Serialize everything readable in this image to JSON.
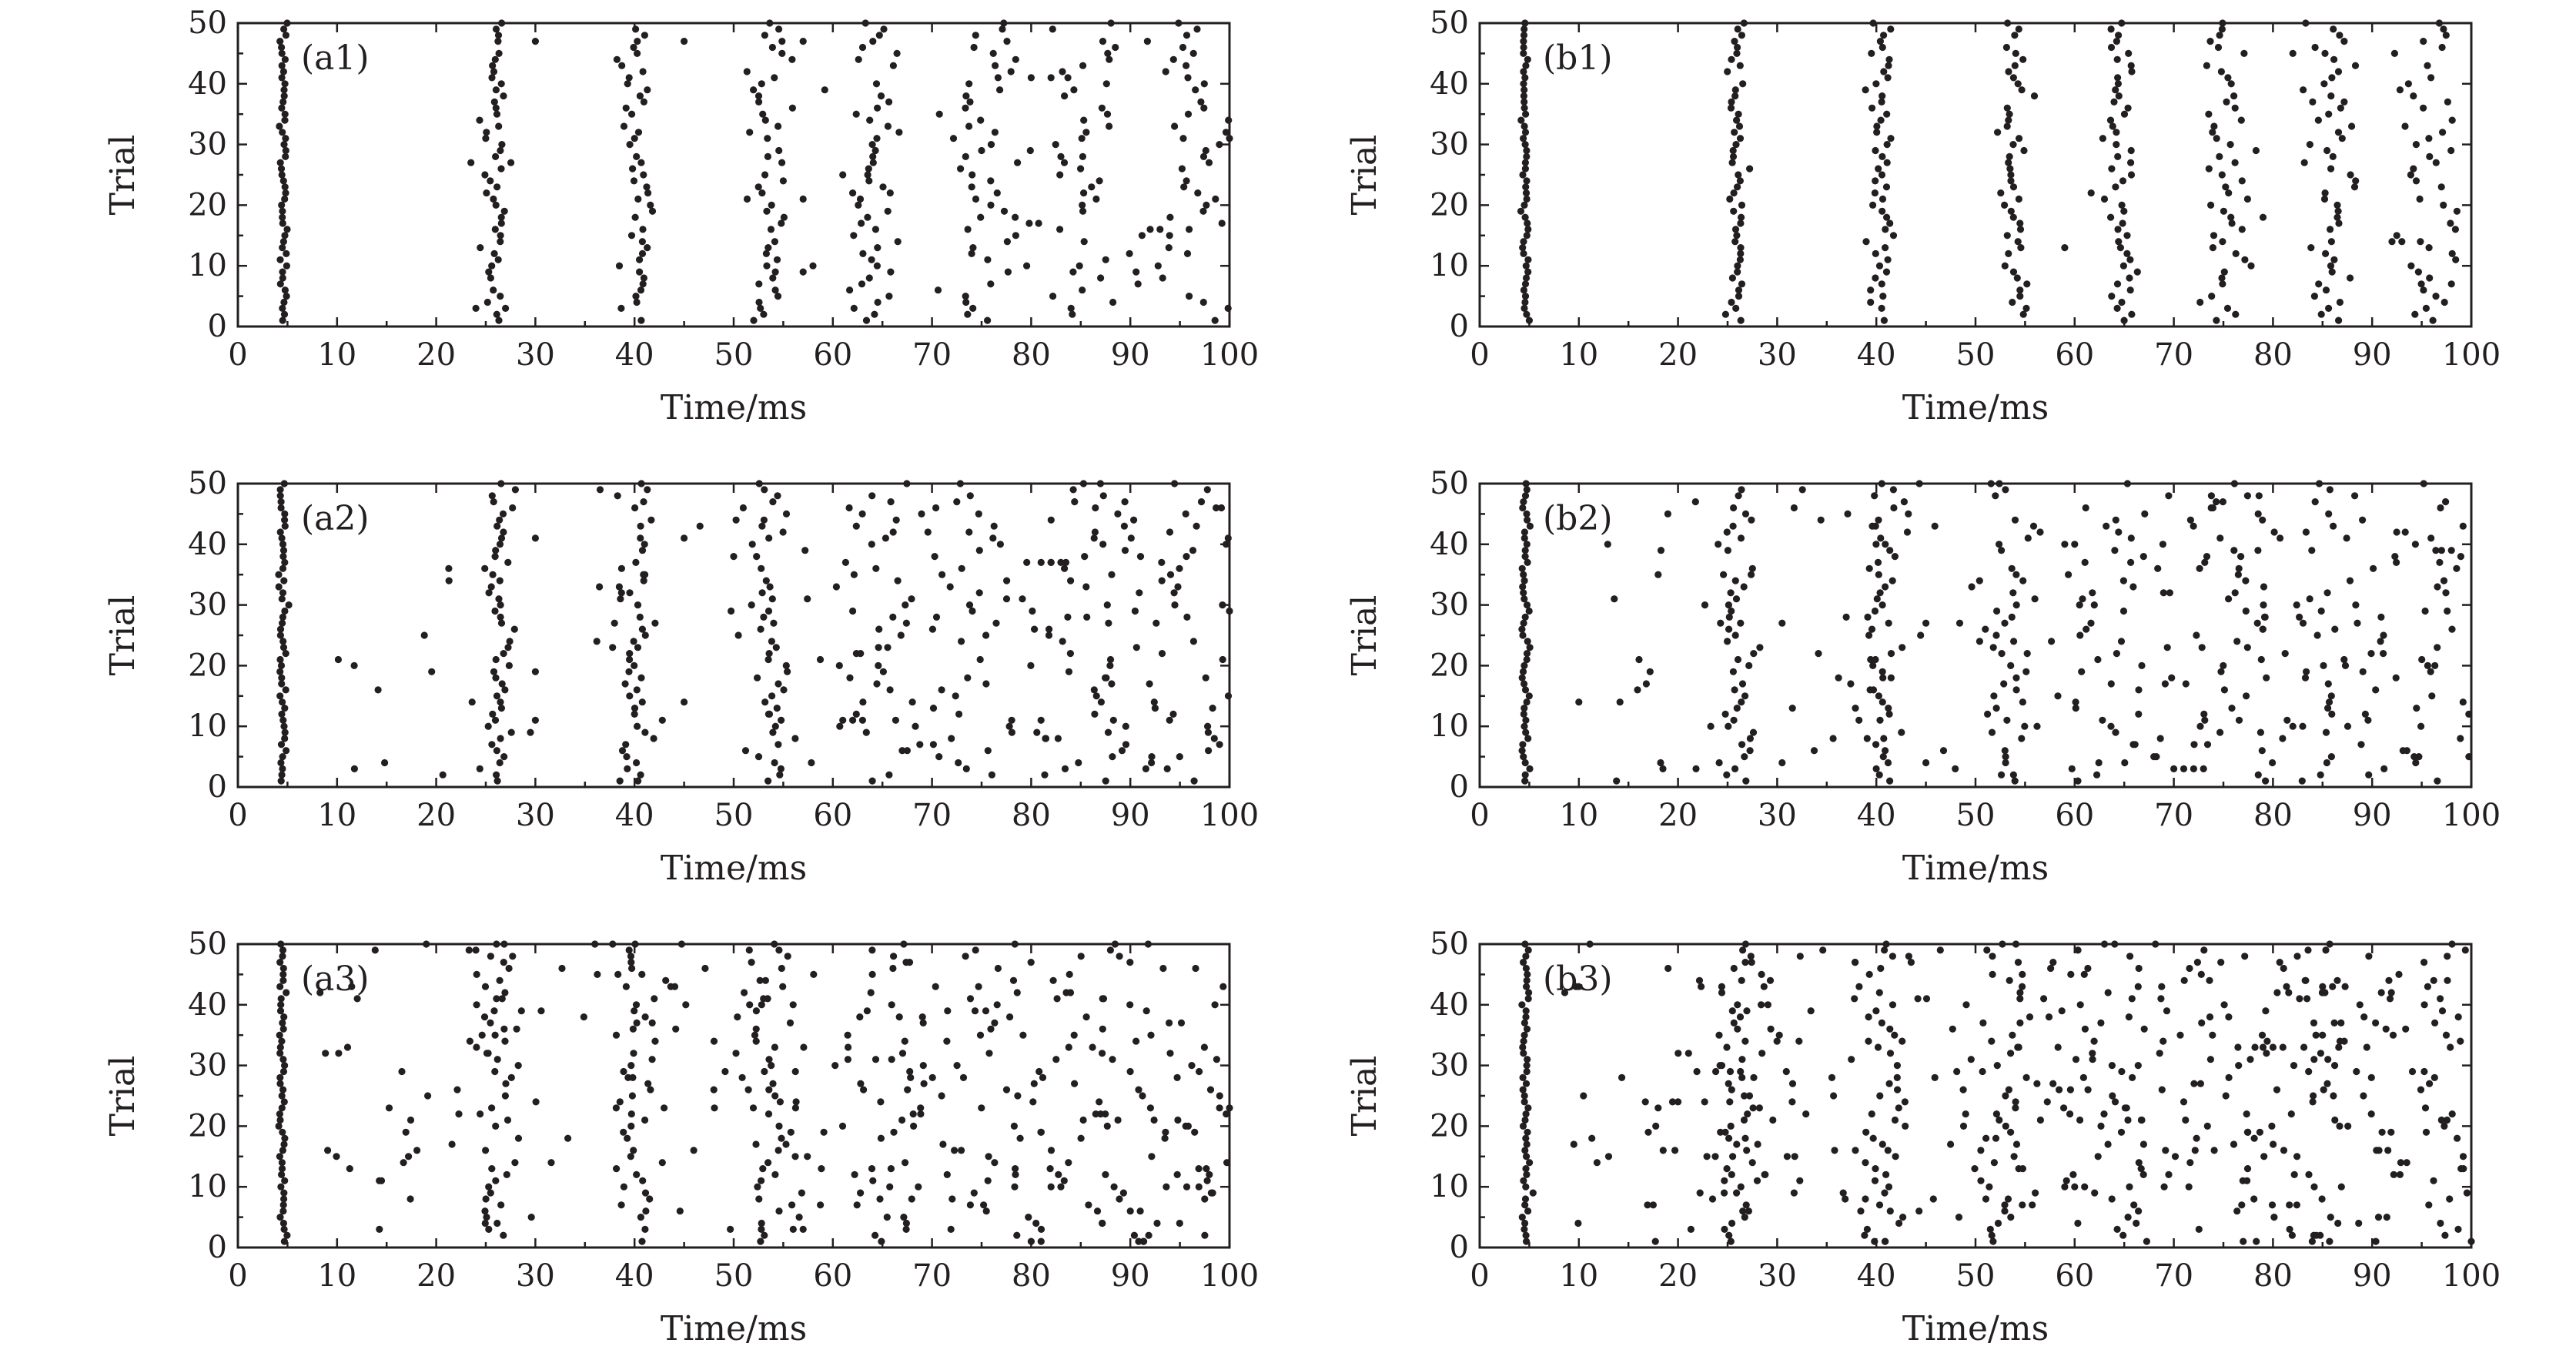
{
  "figure": {
    "colors": {
      "ink": "#231f20",
      "background": "#ffffff"
    }
  },
  "chart_data": [
    {
      "type": "scatter",
      "label": "(a1)",
      "xlabel": "Time/ms",
      "ylabel": "Trial",
      "xlim": [
        0,
        100
      ],
      "ylim": [
        0,
        50
      ],
      "xticks": [
        0,
        10,
        20,
        30,
        40,
        50,
        60,
        70,
        80,
        90,
        100
      ],
      "yticks": [
        0,
        10,
        20,
        30,
        40,
        50
      ],
      "noise_level": 0.6,
      "seed": 11,
      "volleys": [
        {
          "center": 4.6,
          "jitter": 0.18
        },
        {
          "center": 26.0,
          "jitter": 0.6
        },
        {
          "center": 40.4,
          "jitter": 0.8
        },
        {
          "center": 53.5,
          "jitter": 1.1
        },
        {
          "center": 64.3,
          "jitter": 1.6
        },
        {
          "center": 75.4,
          "jitter": 2.0
        },
        {
          "center": 86.1,
          "jitter": 2.3
        },
        {
          "center": 96.5,
          "jitter": 2.4
        }
      ],
      "extra_spikes": [
        [
          23.5,
          27
        ],
        [
          24,
          3
        ],
        [
          30,
          47
        ],
        [
          45,
          47
        ],
        [
          57,
          47
        ],
        [
          57,
          21
        ],
        [
          57,
          9
        ],
        [
          58,
          10
        ],
        [
          61,
          25
        ],
        [
          62,
          22
        ],
        [
          80,
          41
        ],
        [
          82,
          41
        ],
        [
          83,
          28
        ],
        [
          92,
          16
        ],
        [
          93,
          16
        ],
        [
          100,
          31
        ]
      ]
    },
    {
      "type": "scatter",
      "label": "(a2)",
      "xlabel": "Time/ms",
      "ylabel": "Trial",
      "xlim": [
        0,
        100
      ],
      "ylim": [
        0,
        50
      ],
      "xticks": [
        0,
        10,
        20,
        30,
        40,
        50,
        60,
        70,
        80,
        90,
        100
      ],
      "yticks": [
        0,
        10,
        20,
        30,
        40,
        50
      ],
      "noise_level": 1.6,
      "seed": 23,
      "volleys": [
        {
          "center": 4.5,
          "jitter": 0.18
        },
        {
          "center": 26.2,
          "jitter": 0.8
        },
        {
          "center": 40.3,
          "jitter": 0.9
        },
        {
          "center": 53.5,
          "jitter": 1.2
        },
        {
          "center": 64.0,
          "jitter": 2.6
        },
        {
          "center": 75.0,
          "jitter": 3.0
        },
        {
          "center": 86.0,
          "jitter": 3.0
        },
        {
          "center": 96.5,
          "jitter": 3.0
        }
      ],
      "extra_spikes": [
        [
          30,
          41
        ],
        [
          30,
          19
        ],
        [
          29.5,
          9
        ],
        [
          30,
          11
        ],
        [
          45,
          41
        ],
        [
          45,
          14
        ],
        [
          50,
          38
        ],
        [
          61,
          11
        ],
        [
          62,
          11
        ],
        [
          63,
          11
        ],
        [
          81,
          37
        ],
        [
          82,
          37
        ],
        [
          83,
          37
        ],
        [
          100,
          29
        ],
        [
          99,
          7
        ]
      ]
    },
    {
      "type": "scatter",
      "label": "(a3)",
      "xlabel": "Time/ms",
      "ylabel": "Trial",
      "xlim": [
        0,
        100
      ],
      "ylim": [
        0,
        50
      ],
      "xticks": [
        0,
        10,
        20,
        30,
        40,
        50,
        60,
        70,
        80,
        90,
        100
      ],
      "yticks": [
        0,
        10,
        20,
        30,
        40,
        50
      ],
      "noise_level": 3.2,
      "seed": 37,
      "volleys": [
        {
          "center": 4.5,
          "jitter": 0.18
        },
        {
          "center": 26.5,
          "jitter": 1.4
        },
        {
          "center": 40.3,
          "jitter": 1.3
        },
        {
          "center": 53.5,
          "jitter": 1.6
        },
        {
          "center": 64.5,
          "jitter": 3.5
        },
        {
          "center": 76.0,
          "jitter": 4.0
        },
        {
          "center": 87.0,
          "jitter": 4.0
        },
        {
          "center": 97.0,
          "jitter": 4.0
        }
      ],
      "extra_spikes": [
        [
          19,
          50
        ],
        [
          24,
          49
        ],
        [
          36,
          50
        ],
        [
          56,
          3
        ],
        [
          57,
          3
        ],
        [
          80,
          1
        ],
        [
          81,
          1
        ],
        [
          82,
          10
        ],
        [
          83,
          10
        ],
        [
          90,
          6
        ],
        [
          91,
          6
        ],
        [
          100,
          23
        ],
        [
          99,
          23
        ]
      ]
    },
    {
      "type": "scatter",
      "label": "(b1)",
      "xlabel": "Time/ms",
      "ylabel": "Trial",
      "xlim": [
        0,
        100
      ],
      "ylim": [
        0,
        50
      ],
      "xticks": [
        0,
        10,
        20,
        30,
        40,
        50,
        60,
        70,
        80,
        90,
        100
      ],
      "yticks": [
        0,
        10,
        20,
        30,
        40,
        50
      ],
      "noise_level": 0.4,
      "seed": 53,
      "volleys": [
        {
          "center": 4.6,
          "jitter": 0.18
        },
        {
          "center": 26.0,
          "jitter": 0.5
        },
        {
          "center": 40.5,
          "jitter": 0.55
        },
        {
          "center": 53.8,
          "jitter": 0.7
        },
        {
          "center": 64.6,
          "jitter": 1.0
        },
        {
          "center": 75.5,
          "jitter": 1.3
        },
        {
          "center": 86.0,
          "jitter": 1.7
        },
        {
          "center": 96.3,
          "jitter": 2.0
        }
      ],
      "extra_spikes": [
        [
          59,
          13
        ],
        [
          79,
          18
        ],
        [
          82,
          45
        ],
        [
          84,
          37
        ],
        [
          92,
          14
        ],
        [
          93,
          14
        ],
        [
          98,
          7
        ]
      ]
    },
    {
      "type": "scatter",
      "label": "(b2)",
      "xlabel": "Time/ms",
      "ylabel": "Trial",
      "xlim": [
        0,
        100
      ],
      "ylim": [
        0,
        50
      ],
      "xticks": [
        0,
        10,
        20,
        30,
        40,
        50,
        60,
        70,
        80,
        90,
        100
      ],
      "yticks": [
        0,
        10,
        20,
        30,
        40,
        50
      ],
      "noise_level": 2.2,
      "seed": 71,
      "volleys": [
        {
          "center": 4.6,
          "jitter": 0.18
        },
        {
          "center": 26.0,
          "jitter": 1.0
        },
        {
          "center": 40.3,
          "jitter": 1.1
        },
        {
          "center": 53.5,
          "jitter": 1.6
        },
        {
          "center": 64.0,
          "jitter": 3.0
        },
        {
          "center": 75.0,
          "jitter": 3.5
        },
        {
          "center": 86.0,
          "jitter": 3.5
        },
        {
          "center": 96.5,
          "jitter": 3.5
        }
      ],
      "extra_spikes": [
        [
          18,
          35
        ],
        [
          30.5,
          27
        ],
        [
          30.5,
          4
        ],
        [
          45,
          27
        ],
        [
          45,
          4
        ],
        [
          59,
          40
        ],
        [
          60,
          40
        ],
        [
          70,
          3
        ],
        [
          71,
          3
        ],
        [
          72,
          3
        ],
        [
          73,
          3
        ],
        [
          82,
          10
        ],
        [
          83,
          10
        ],
        [
          97,
          39
        ],
        [
          98,
          39
        ]
      ]
    },
    {
      "type": "scatter",
      "label": "(b3)",
      "xlabel": "Time/ms",
      "ylabel": "Trial",
      "xlim": [
        0,
        100
      ],
      "ylim": [
        0,
        50
      ],
      "xticks": [
        0,
        10,
        20,
        30,
        40,
        50,
        60,
        70,
        80,
        90,
        100
      ],
      "yticks": [
        0,
        10,
        20,
        30,
        40,
        50
      ],
      "noise_level": 4.6,
      "seed": 89,
      "volleys": [
        {
          "center": 4.6,
          "jitter": 0.18
        },
        {
          "center": 26.0,
          "jitter": 1.2
        },
        {
          "center": 40.3,
          "jitter": 1.4
        },
        {
          "center": 53.0,
          "jitter": 2.5
        },
        {
          "center": 64.0,
          "jitter": 4.0
        },
        {
          "center": 75.0,
          "jitter": 4.5
        },
        {
          "center": 86.0,
          "jitter": 4.5
        },
        {
          "center": 97.0,
          "jitter": 4.5
        }
      ],
      "extra_spikes": [
        [
          17,
          19
        ],
        [
          17.5,
          7
        ],
        [
          18,
          23
        ],
        [
          18.5,
          16
        ],
        [
          20,
          24
        ],
        [
          59,
          10
        ],
        [
          60,
          10
        ],
        [
          61,
          10
        ],
        [
          79,
          33
        ],
        [
          80,
          33
        ],
        [
          81,
          33
        ],
        [
          85,
          43
        ],
        [
          86,
          43
        ],
        [
          100,
          1
        ]
      ]
    }
  ]
}
